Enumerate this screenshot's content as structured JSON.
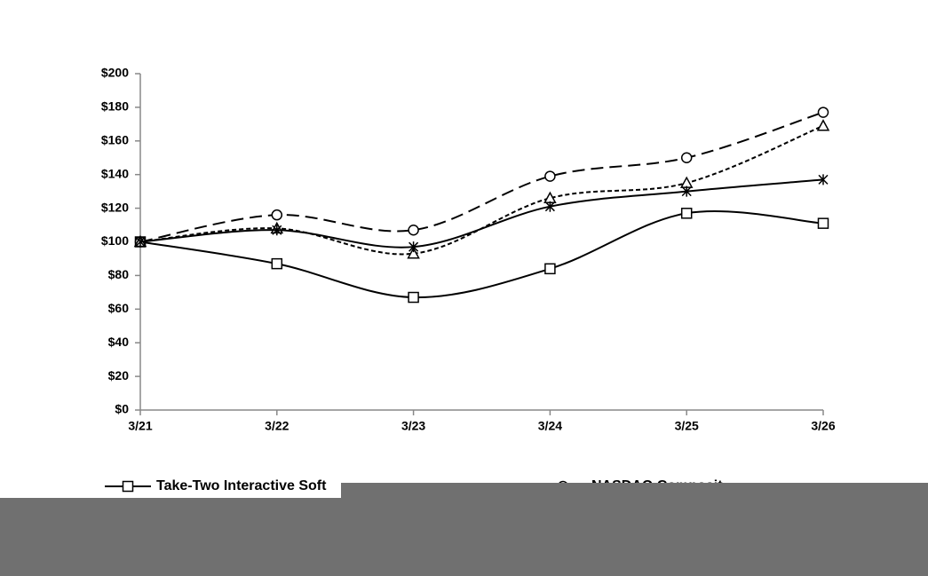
{
  "chart_data": {
    "type": "line",
    "categories": [
      "3/21",
      "3/22",
      "3/23",
      "3/24",
      "3/25",
      "3/26"
    ],
    "series": [
      {
        "name": "Take-Two Interactive Soft",
        "color": "#000000",
        "marker": "square",
        "dash": "solid",
        "values": [
          100,
          87,
          67,
          84,
          117,
          111
        ]
      },
      {
        "name": "NASDAQ Composit",
        "color": "#000000",
        "marker": "circle",
        "dash": "long",
        "values": [
          100,
          116,
          107,
          139,
          150,
          177
        ]
      },
      {
        "color": "#000000",
        "marker": "triangle",
        "dash": "short",
        "values": [
          100,
          108,
          93,
          126,
          135,
          169
        ]
      },
      {
        "color": "#000000",
        "marker": "star",
        "dash": "solid",
        "values": [
          100,
          107,
          97,
          121,
          130,
          137
        ]
      }
    ],
    "ylim": [
      0,
      200
    ],
    "yticks": [
      {
        "value": 0,
        "label": "$0"
      },
      {
        "value": 20,
        "label": "$20"
      },
      {
        "value": 40,
        "label": "$40"
      },
      {
        "value": 60,
        "label": "$60"
      },
      {
        "value": 80,
        "label": "$80"
      },
      {
        "value": 100,
        "label": "$100"
      },
      {
        "value": 120,
        "label": "$120"
      },
      {
        "value": 140,
        "label": "$140"
      },
      {
        "value": 160,
        "label": "$160"
      },
      {
        "value": 180,
        "label": "$180"
      },
      {
        "value": 200,
        "label": "$200"
      }
    ],
    "grid": false
  }
}
